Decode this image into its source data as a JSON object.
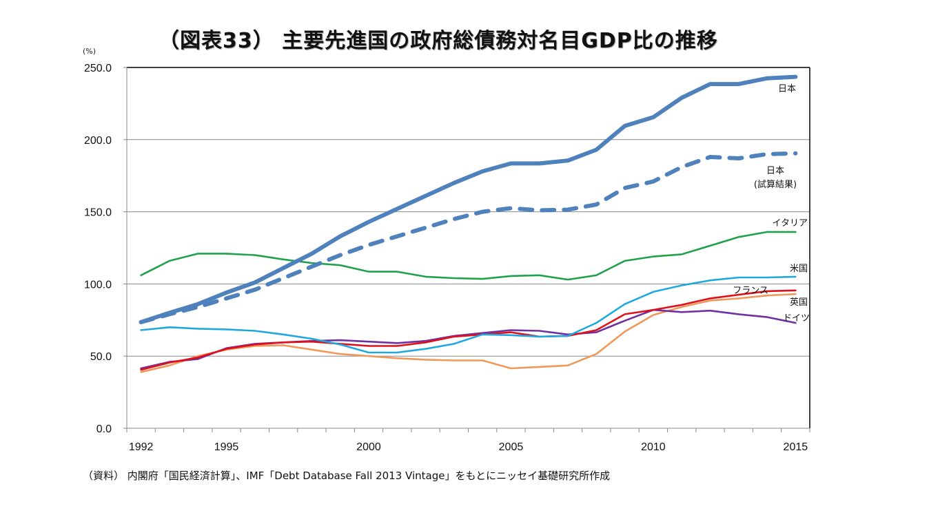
{
  "chart_data": {
    "type": "line",
    "title": "（図表33） 主要先進国の政府総債務対名目GDP比の推移",
    "ylabel": "(%)",
    "xlabel": "",
    "source_note": "（資料） 内閣府「国民経済計算」、IMF「Debt Database Fall 2013 Vintage」をもとにニッセイ基礎研究所作成",
    "ylim": [
      0,
      250
    ],
    "yticks": [
      "0.0",
      "50.0",
      "100.0",
      "150.0",
      "200.0",
      "250.0"
    ],
    "x": [
      1992,
      1993,
      1994,
      1995,
      1996,
      1997,
      1998,
      1999,
      2000,
      2001,
      2002,
      2003,
      2004,
      2005,
      2006,
      2007,
      2008,
      2009,
      2010,
      2011,
      2012,
      2013,
      2014,
      2015
    ],
    "xticks": [
      "1992",
      "1995",
      "2000",
      "2005",
      "2010",
      "2015"
    ],
    "grid": "horizontal",
    "series": [
      {
        "name": "日本",
        "color": "#4F81BD",
        "style": "solid-thick",
        "values": [
          73.5,
          80,
          86,
          94,
          101,
          111,
          121,
          133,
          143,
          152,
          161,
          170,
          178,
          183.5,
          183.5,
          185.5,
          193,
          209.5,
          215.5,
          229,
          238.5,
          238.5,
          242.5,
          243.5
        ]
      },
      {
        "name": "日本\n(試算結果)",
        "color": "#4F81BD",
        "style": "dashed-thick",
        "values": [
          73.5,
          79,
          84,
          90,
          96,
          104,
          112,
          120,
          127,
          133,
          139,
          145,
          150,
          152.5,
          151,
          151.5,
          155,
          166.5,
          171,
          181,
          188,
          187,
          190,
          190.5
        ]
      },
      {
        "name": "イタリア",
        "color": "#1FA04A",
        "style": "solid",
        "values": [
          106,
          116,
          121,
          121,
          120,
          117,
          114.5,
          113,
          108.5,
          108.5,
          105,
          104,
          103.5,
          105.5,
          106,
          103,
          106,
          116,
          119,
          120.5,
          126.5,
          132.5,
          136,
          136
        ]
      },
      {
        "name": "米国",
        "color": "#1EA8DF",
        "style": "solid",
        "values": [
          68,
          70,
          69,
          68.5,
          67.5,
          65,
          62,
          58,
          52.5,
          52.5,
          55,
          58.5,
          65,
          64.5,
          63.5,
          64,
          73,
          86,
          94.5,
          99,
          102.5,
          104.5,
          104.5,
          105
        ]
      },
      {
        "name": "フランス",
        "color": "#E0101A",
        "style": "solid",
        "values": [
          40.5,
          45.5,
          49,
          55,
          58,
          59.5,
          60,
          58.5,
          57,
          57,
          59.5,
          63.5,
          65,
          66.5,
          63.5,
          64,
          68,
          79,
          82,
          85.5,
          90,
          92.5,
          95,
          95.5
        ]
      },
      {
        "name": "英国",
        "color": "#F0975A",
        "style": "solid",
        "values": [
          39,
          43.5,
          50,
          54.5,
          57,
          57.5,
          54.5,
          51.5,
          50,
          48.5,
          47.5,
          47,
          47,
          41.5,
          42.5,
          43.5,
          51.5,
          67,
          78.5,
          84,
          88.5,
          90,
          92,
          93
        ]
      },
      {
        "name": "ドイツ",
        "color": "#7030A0",
        "style": "solid",
        "values": [
          41.5,
          46,
          48,
          55.5,
          58.5,
          59.5,
          60.5,
          61,
          60,
          59,
          60.5,
          64,
          66,
          68,
          67.5,
          65,
          66.5,
          74.5,
          82,
          80.5,
          81.5,
          79,
          77,
          73
        ]
      }
    ]
  }
}
